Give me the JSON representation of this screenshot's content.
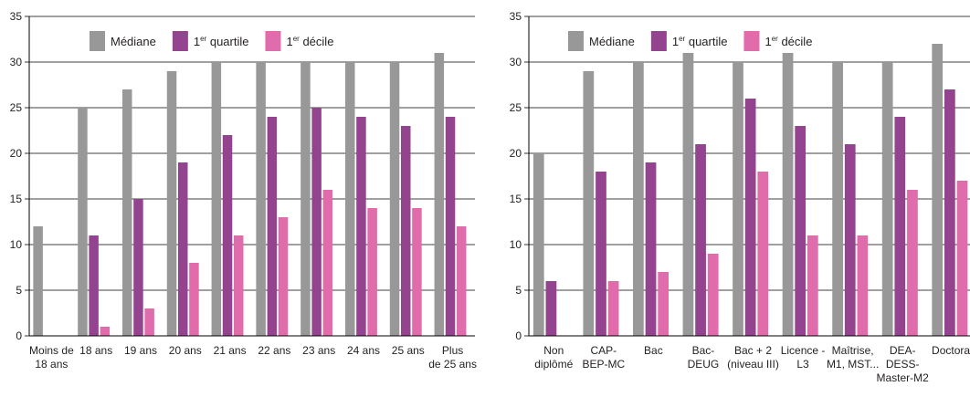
{
  "colors": {
    "mediane": "#989898",
    "q1": "#94448e",
    "d1": "#e06cab",
    "axis": "#000000"
  },
  "chart_data": [
    {
      "type": "bar",
      "ylim": [
        0,
        35
      ],
      "yticks": [
        0,
        5,
        10,
        15,
        20,
        25,
        30,
        35
      ],
      "grid": true,
      "legend_position": "top",
      "categories": [
        [
          "Moins de",
          "18 ans"
        ],
        [
          "18 ans"
        ],
        [
          "19 ans"
        ],
        [
          "20 ans"
        ],
        [
          "21 ans"
        ],
        [
          "22 ans"
        ],
        [
          "23 ans"
        ],
        [
          "24 ans"
        ],
        [
          "25 ans"
        ],
        [
          "Plus",
          "de 25 ans"
        ]
      ],
      "series": [
        {
          "name": "Médiane",
          "color": "#989898",
          "values": [
            12,
            25,
            27,
            29,
            30,
            30,
            30,
            30,
            30,
            31
          ]
        },
        {
          "name": "1er quartile",
          "name_base": "1",
          "name_sup": "er",
          "name_rest": " quartile",
          "color": "#94448e",
          "values": [
            null,
            11,
            15,
            19,
            22,
            24,
            25,
            24,
            23,
            24
          ]
        },
        {
          "name": "1er décile",
          "name_base": "1",
          "name_sup": "er",
          "name_rest": " décile",
          "color": "#e06cab",
          "values": [
            null,
            1,
            3,
            8,
            11,
            13,
            16,
            14,
            14,
            12
          ]
        }
      ]
    },
    {
      "type": "bar",
      "ylim": [
        0,
        35
      ],
      "yticks": [
        0,
        5,
        10,
        15,
        20,
        25,
        30,
        35
      ],
      "grid": true,
      "legend_position": "top",
      "categories": [
        [
          "Non",
          "diplômé"
        ],
        [
          "CAP-",
          "BEP-MC"
        ],
        [
          "Bac"
        ],
        [
          "Bac-",
          "DEUG"
        ],
        [
          "Bac + 2",
          "(niveau III)"
        ],
        [
          "Licence -",
          "L3"
        ],
        [
          "Maîtrise,",
          "M1, MST..."
        ],
        [
          "DEA-",
          "DESS-",
          "Master-M2"
        ],
        [
          "Doctorat"
        ]
      ],
      "series": [
        {
          "name": "Médiane",
          "color": "#989898",
          "values": [
            20,
            29,
            30,
            31,
            30,
            31,
            30,
            30,
            32
          ]
        },
        {
          "name": "1er quartile",
          "name_base": "1",
          "name_sup": "er",
          "name_rest": " quartile",
          "color": "#94448e",
          "values": [
            6,
            18,
            19,
            21,
            26,
            23,
            21,
            24,
            27
          ]
        },
        {
          "name": "1er décile",
          "name_base": "1",
          "name_sup": "er",
          "name_rest": " décile",
          "color": "#e06cab",
          "values": [
            null,
            6,
            7,
            9,
            18,
            11,
            11,
            16,
            17
          ]
        }
      ]
    }
  ]
}
